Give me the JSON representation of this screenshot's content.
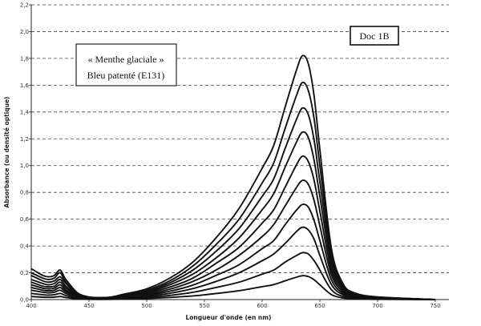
{
  "chart_data": {
    "type": "line",
    "title": "",
    "xlabel": "Longueur d'onde (en nm)",
    "ylabel": "Absorbance (ou densité optique)",
    "xlim": [
      400,
      750
    ],
    "ylim": [
      0,
      2.2
    ],
    "x_ticks": [
      "400",
      "450",
      "500",
      "550",
      "600",
      "650",
      "700",
      "750"
    ],
    "y_ticks": [
      "0,0",
      "0,2",
      "0,4",
      "0,6",
      "0,8",
      "1,0",
      "1,2",
      "1,4",
      "1,6",
      "1,8",
      "2,0",
      "2,2"
    ],
    "grid": "horizontal dashed",
    "line_color": "#111111",
    "annotations": {
      "label_box": [
        "« Menthe glaciale »",
        "Bleu patenté (E131)"
      ],
      "doc_label": "Doc 1B"
    },
    "x": [
      400,
      410,
      415,
      420,
      425,
      430,
      440,
      450,
      460,
      470,
      480,
      500,
      520,
      540,
      560,
      580,
      600,
      610,
      620,
      630,
      635,
      640,
      645,
      650,
      660,
      670,
      680,
      700,
      750
    ],
    "series": [
      {
        "values": [
          0.23,
          0.18,
          0.17,
          0.18,
          0.22,
          0.15,
          0.05,
          0.02,
          0.015,
          0.02,
          0.04,
          0.08,
          0.16,
          0.28,
          0.46,
          0.68,
          0.98,
          1.15,
          1.44,
          1.72,
          1.82,
          1.76,
          1.52,
          1.12,
          0.38,
          0.12,
          0.05,
          0.02,
          0.0
        ]
      },
      {
        "values": [
          0.2,
          0.16,
          0.15,
          0.16,
          0.2,
          0.13,
          0.045,
          0.018,
          0.013,
          0.018,
          0.035,
          0.07,
          0.14,
          0.25,
          0.41,
          0.6,
          0.87,
          1.02,
          1.28,
          1.53,
          1.62,
          1.56,
          1.35,
          1.0,
          0.34,
          0.11,
          0.045,
          0.018,
          0.0
        ]
      },
      {
        "values": [
          0.18,
          0.14,
          0.13,
          0.14,
          0.17,
          0.12,
          0.04,
          0.016,
          0.012,
          0.016,
          0.031,
          0.062,
          0.125,
          0.22,
          0.36,
          0.53,
          0.77,
          0.9,
          1.13,
          1.35,
          1.43,
          1.38,
          1.19,
          0.88,
          0.3,
          0.095,
          0.04,
          0.016,
          0.0
        ]
      },
      {
        "values": [
          0.15,
          0.12,
          0.11,
          0.12,
          0.15,
          0.1,
          0.034,
          0.014,
          0.01,
          0.014,
          0.027,
          0.054,
          0.11,
          0.19,
          0.31,
          0.46,
          0.67,
          0.79,
          0.99,
          1.18,
          1.25,
          1.21,
          1.04,
          0.77,
          0.26,
          0.083,
          0.034,
          0.014,
          0.0
        ]
      },
      {
        "values": [
          0.13,
          0.1,
          0.095,
          0.1,
          0.13,
          0.085,
          0.029,
          0.012,
          0.009,
          0.012,
          0.023,
          0.046,
          0.093,
          0.16,
          0.27,
          0.39,
          0.57,
          0.67,
          0.84,
          1.01,
          1.07,
          1.03,
          0.89,
          0.66,
          0.22,
          0.071,
          0.029,
          0.012,
          0.0
        ]
      },
      {
        "values": [
          0.11,
          0.085,
          0.08,
          0.085,
          0.11,
          0.07,
          0.024,
          0.01,
          0.007,
          0.01,
          0.019,
          0.038,
          0.077,
          0.135,
          0.22,
          0.33,
          0.47,
          0.56,
          0.7,
          0.84,
          0.89,
          0.86,
          0.74,
          0.55,
          0.185,
          0.059,
          0.024,
          0.01,
          0.0
        ]
      },
      {
        "values": [
          0.09,
          0.07,
          0.065,
          0.07,
          0.09,
          0.058,
          0.02,
          0.008,
          0.006,
          0.008,
          0.015,
          0.031,
          0.062,
          0.108,
          0.18,
          0.26,
          0.38,
          0.44,
          0.56,
          0.67,
          0.71,
          0.69,
          0.59,
          0.44,
          0.148,
          0.047,
          0.019,
          0.008,
          0.0
        ]
      },
      {
        "values": [
          0.07,
          0.055,
          0.05,
          0.055,
          0.07,
          0.045,
          0.015,
          0.006,
          0.005,
          0.006,
          0.012,
          0.024,
          0.047,
          0.082,
          0.135,
          0.2,
          0.29,
          0.34,
          0.42,
          0.51,
          0.54,
          0.52,
          0.45,
          0.33,
          0.112,
          0.036,
          0.015,
          0.006,
          0.0
        ]
      },
      {
        "values": [
          0.046,
          0.036,
          0.033,
          0.036,
          0.046,
          0.03,
          0.01,
          0.004,
          0.003,
          0.004,
          0.008,
          0.016,
          0.031,
          0.054,
          0.09,
          0.13,
          0.19,
          0.22,
          0.28,
          0.33,
          0.35,
          0.34,
          0.29,
          0.22,
          0.073,
          0.023,
          0.01,
          0.004,
          0.0
        ]
      },
      {
        "values": [
          0.023,
          0.018,
          0.017,
          0.018,
          0.023,
          0.015,
          0.005,
          0.002,
          0.0015,
          0.002,
          0.004,
          0.008,
          0.016,
          0.027,
          0.045,
          0.066,
          0.096,
          0.112,
          0.14,
          0.168,
          0.178,
          0.172,
          0.148,
          0.11,
          0.037,
          0.012,
          0.005,
          0.002,
          0.0
        ]
      }
    ]
  }
}
